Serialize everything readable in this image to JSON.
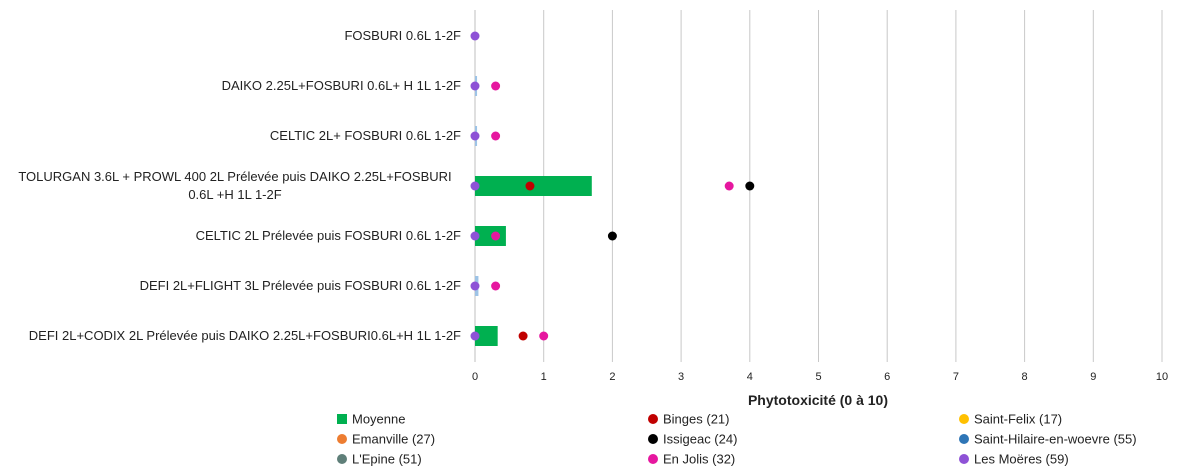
{
  "chart_data": {
    "type": "bar",
    "orientation": "horizontal",
    "categories": [
      [
        "FOSBURI 0.6L 1-2F"
      ],
      [
        "DAIKO 2.25L+FOSBURI 0.6L+ H 1L 1-2F"
      ],
      [
        "CELTIC 2L+ FOSBURI 0.6L 1-2F"
      ],
      [
        "TOLURGAN 3.6L + PROWL 400 2L Prélevée puis DAIKO 2.25L+FOSBURI",
        "0.6L +H 1L  1-2F"
      ],
      [
        "CELTIC 2L Prélevée puis FOSBURI 0.6L 1-2F"
      ],
      [
        "DEFI 2L+FLIGHT 3L Prélevée puis FOSBURI 0.6L 1-2F"
      ],
      [
        "DEFI 2L+CODIX 2L Prélevée puis DAIKO 2.25L+FOSBURI0.6L+H 1L 1-2F"
      ]
    ],
    "xlabel": "Phytotoxicité (0 à 10)",
    "xlim": [
      0,
      10
    ],
    "xticks": [
      "0",
      "1",
      "2",
      "3",
      "4",
      "5",
      "6",
      "7",
      "8",
      "9",
      "10"
    ],
    "grid": "vertical",
    "legend_position": "bottom",
    "bar_series": {
      "name": "Moyenne",
      "color": "#00b050",
      "values": [
        0,
        0.03,
        0.03,
        1.7,
        0.45,
        0.05,
        0.33
      ]
    },
    "small_bar_color": "#9dc3e6",
    "series": [
      {
        "name": "Binges (21)",
        "color": "#c00000",
        "values": [
          null,
          null,
          null,
          0.8,
          null,
          null,
          0.7
        ]
      },
      {
        "name": "Saint-Felix (17)",
        "color": "#ffc000",
        "values": [
          null,
          null,
          null,
          null,
          null,
          null,
          null
        ]
      },
      {
        "name": "Emanville (27)",
        "color": "#ed7d31",
        "values": [
          null,
          null,
          null,
          null,
          null,
          null,
          null
        ]
      },
      {
        "name": "Issigeac (24)",
        "color": "#000000",
        "values": [
          null,
          null,
          null,
          4.0,
          2.0,
          null,
          null
        ]
      },
      {
        "name": "Saint-Hilaire-en-woevre (55)",
        "color": "#2e75b6",
        "values": [
          null,
          null,
          null,
          null,
          null,
          null,
          null
        ]
      },
      {
        "name": "L'Epine (51)",
        "color": "#5f7f79",
        "values": [
          null,
          null,
          null,
          null,
          null,
          null,
          null
        ]
      },
      {
        "name": "En Jolis (32)",
        "color": "#e6179f",
        "values": [
          null,
          0.3,
          0.3,
          3.7,
          0.3,
          0.3,
          1.0
        ]
      },
      {
        "name": "Les Moëres (59)",
        "color": "#8e52d6",
        "values": [
          0,
          0,
          0,
          0,
          0,
          0,
          0
        ]
      }
    ],
    "legend": [
      {
        "label": "Moyenne",
        "color": "#00b050",
        "marker": "square"
      },
      {
        "label": "Binges (21)",
        "color": "#c00000",
        "marker": "circle"
      },
      {
        "label": "Saint-Felix (17)",
        "color": "#ffc000",
        "marker": "circle"
      },
      {
        "label": "Emanville (27)",
        "color": "#ed7d31",
        "marker": "circle"
      },
      {
        "label": "Issigeac (24)",
        "color": "#000000",
        "marker": "circle"
      },
      {
        "label": "Saint-Hilaire-en-woevre (55)",
        "color": "#2e75b6",
        "marker": "circle"
      },
      {
        "label": "L'Epine (51)",
        "color": "#5f7f79",
        "marker": "circle"
      },
      {
        "label": "En Jolis (32)",
        "color": "#e6179f",
        "marker": "circle"
      },
      {
        "label": "Les Moëres (59)",
        "color": "#8e52d6",
        "marker": "circle"
      }
    ]
  }
}
